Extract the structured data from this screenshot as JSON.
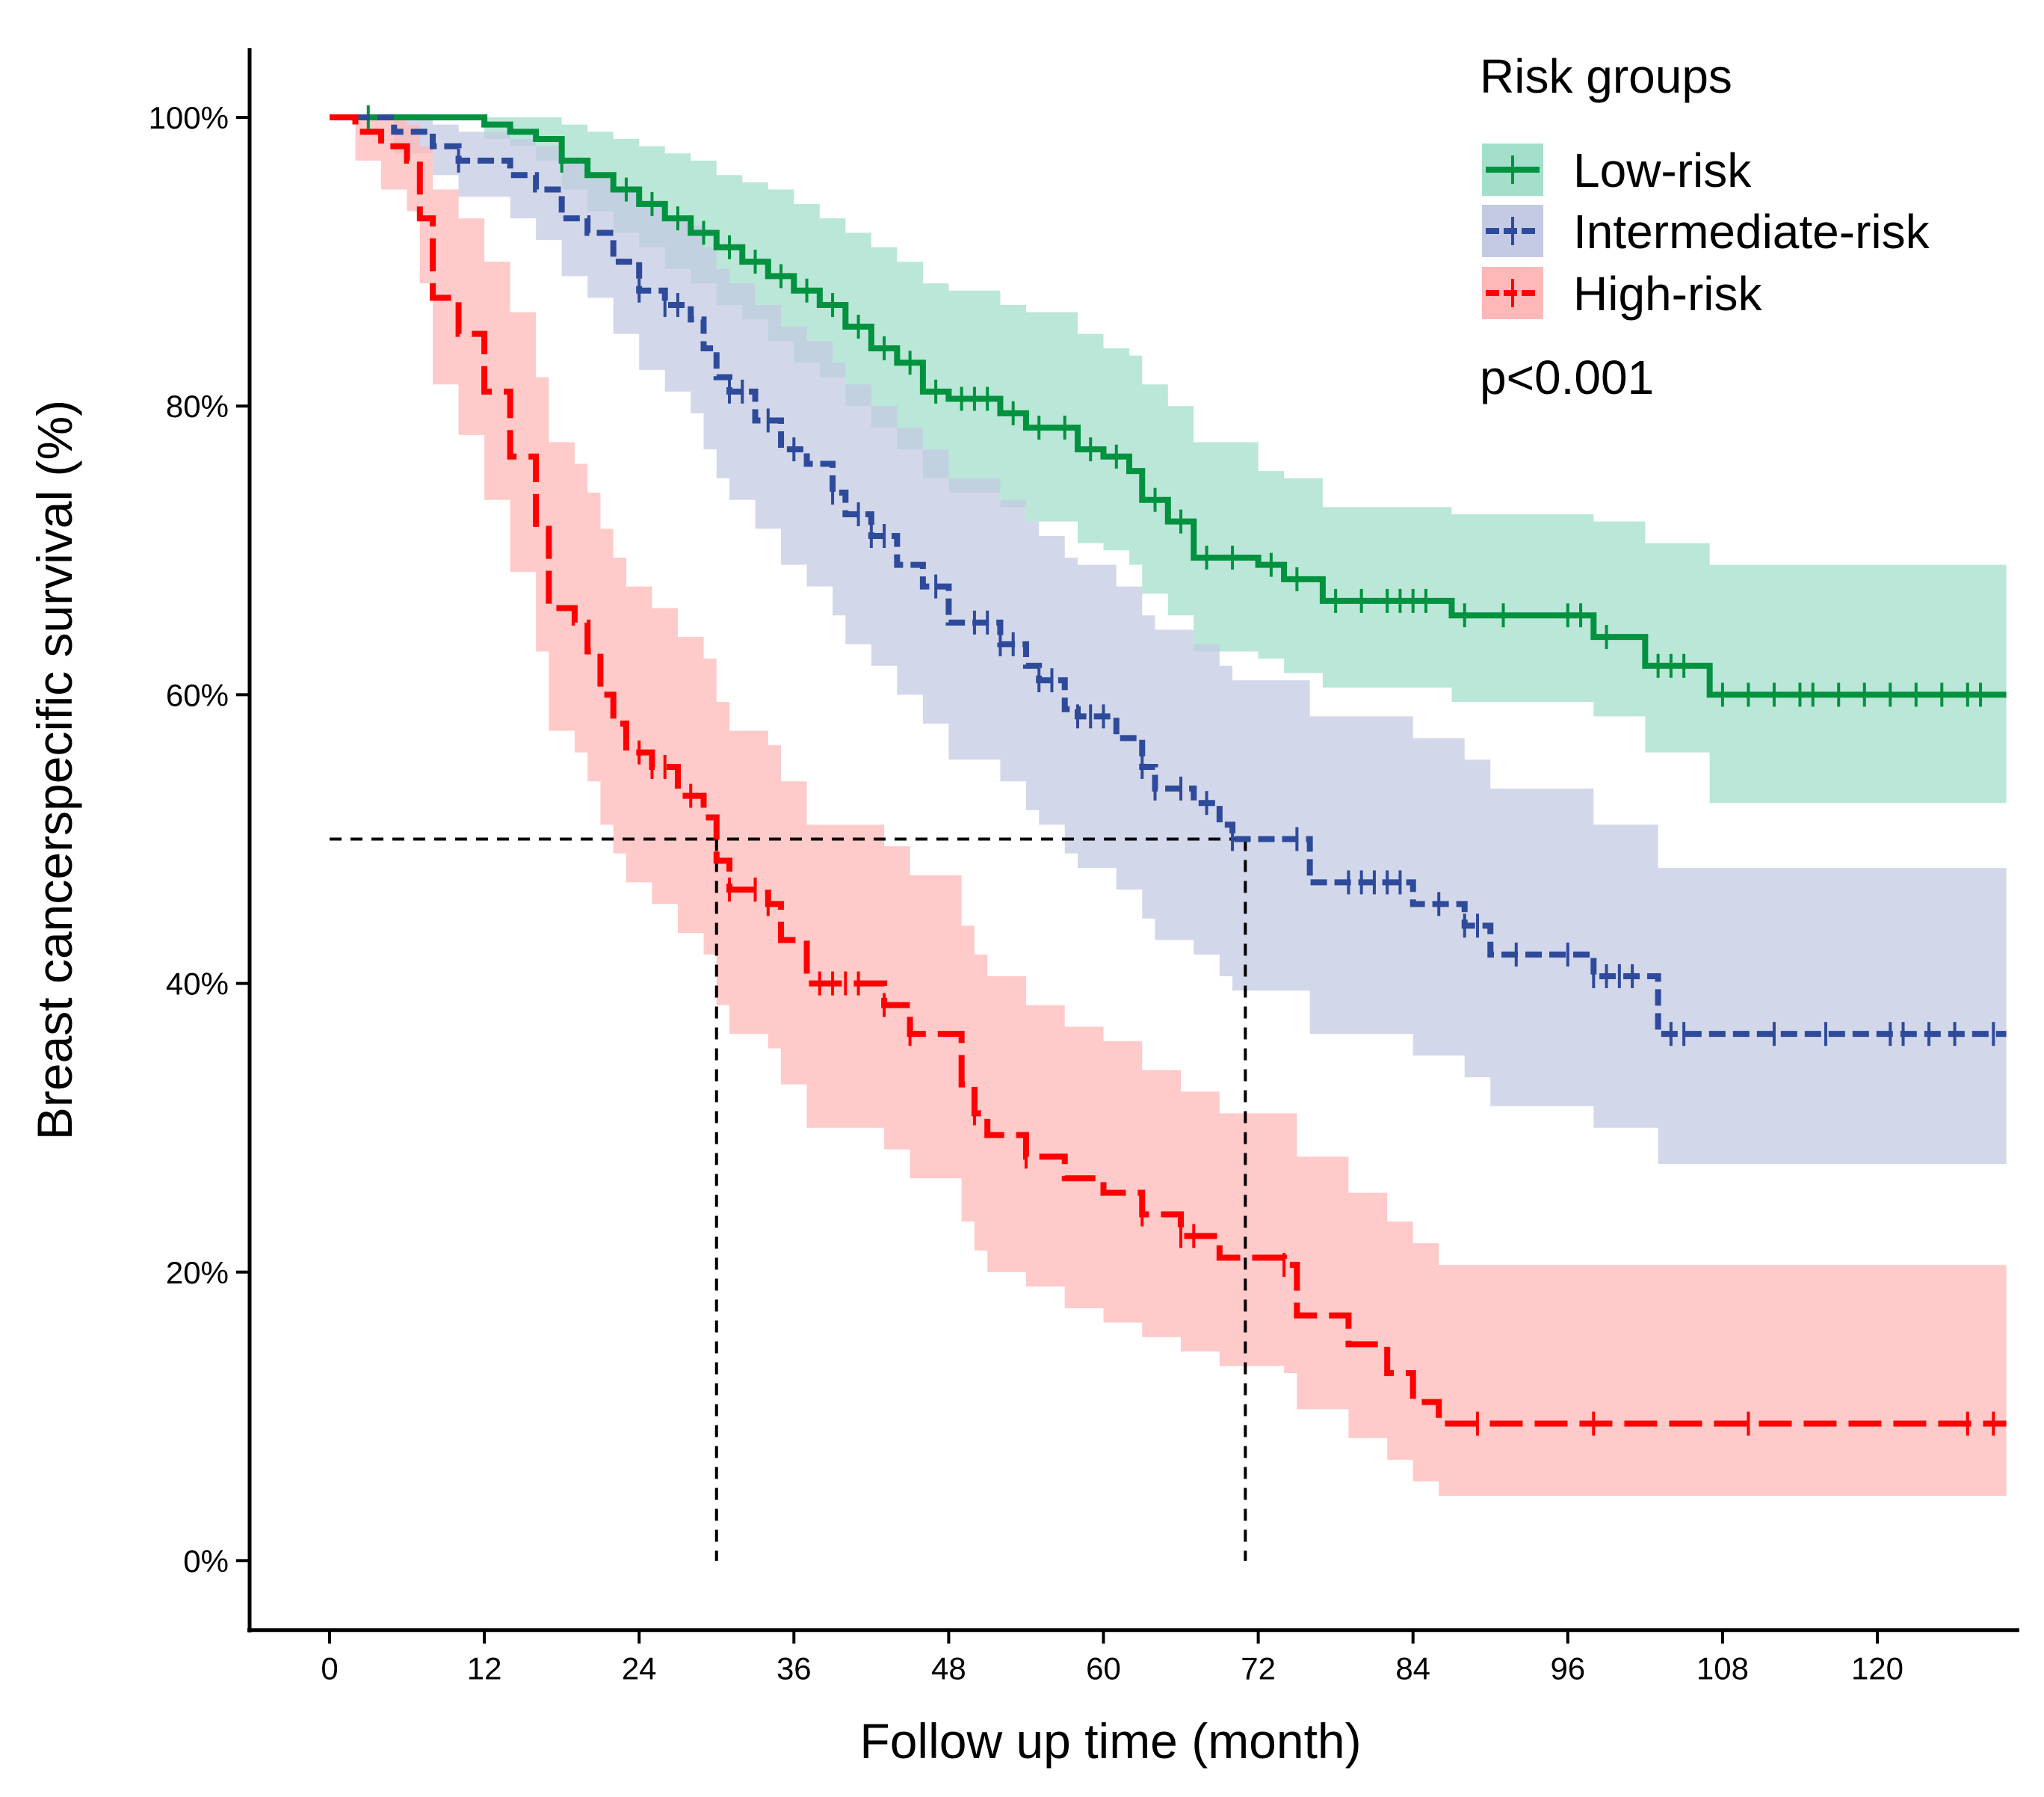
{
  "chart_data": {
    "type": "line",
    "subtype": "kaplan-meier",
    "xlabel": "Follow up time (month)",
    "ylabel": "Breast cancerspecific survival (%)",
    "xlim": [
      -6.2,
      131
    ],
    "ylim": [
      -4.8,
      104.8
    ],
    "xticks": [
      0,
      12,
      24,
      36,
      48,
      60,
      72,
      84,
      96,
      108,
      120
    ],
    "yticks": [
      0,
      20,
      40,
      60,
      80,
      100
    ],
    "ytick_labels": [
      "0%",
      "20%",
      "40%",
      "60%",
      "80%",
      "100%"
    ],
    "grid": false,
    "legend": {
      "title": "Risk groups",
      "placement": "top-right",
      "annotation": "p<0.001"
    },
    "x_end": 130,
    "median_lines": {
      "y": 50,
      "x": [
        30,
        71
      ]
    },
    "series": [
      {
        "name": "Low-risk",
        "line_color": "#00923F",
        "fill_color": "#A3DFCA",
        "dash": "solid",
        "time": [
          0,
          12,
          14,
          16,
          18,
          20,
          22,
          24,
          26,
          28,
          30,
          32,
          34,
          36,
          38,
          40,
          42,
          44,
          46,
          48,
          52,
          54,
          58,
          60,
          62,
          63,
          65,
          67,
          72,
          74,
          77,
          87,
          98,
          102,
          107
        ],
        "survival": [
          100,
          99.5,
          99,
          98.5,
          97,
          96,
          95,
          94,
          93,
          92,
          91,
          90,
          89,
          88,
          87,
          85.5,
          84,
          83,
          81,
          80.5,
          79.5,
          78.5,
          77,
          76.5,
          75.5,
          73.5,
          72,
          69.5,
          69,
          68,
          66.5,
          65.5,
          64,
          62,
          60
        ],
        "upper": [
          100,
          100,
          100,
          100,
          99.5,
          99,
          98.5,
          98,
          97.5,
          97,
          96,
          95.5,
          95,
          94,
          93,
          92,
          91,
          90,
          88.5,
          88,
          87,
          86.5,
          85,
          84,
          83.5,
          81.5,
          80,
          77.5,
          75.5,
          75,
          73,
          72.5,
          72,
          70.5,
          69
        ],
        "lower": [
          100,
          98.5,
          98,
          97,
          95,
          93.5,
          92,
          91,
          89.5,
          88.5,
          87,
          86,
          84.5,
          83,
          82,
          80,
          78.5,
          77,
          75,
          74,
          73,
          72,
          70.5,
          70,
          69,
          67,
          65.5,
          63,
          62.5,
          61.5,
          60.5,
          59.5,
          58.5,
          56,
          52.5
        ],
        "censored": [
          3,
          18,
          23,
          25,
          27,
          29,
          31,
          33,
          35,
          37,
          39,
          41,
          43,
          45,
          47,
          49,
          50,
          51,
          53,
          55,
          57,
          59,
          61,
          64,
          66,
          68,
          70,
          73,
          75,
          78,
          80,
          82,
          83,
          84,
          85,
          88,
          91,
          96,
          97,
          99,
          103,
          104,
          105,
          108,
          110,
          112,
          114,
          115,
          117,
          119,
          121,
          123,
          125,
          127,
          128
        ]
      },
      {
        "name": "Intermediate-risk",
        "line_color": "#2E4A9A",
        "fill_color": "#C4CAE3",
        "dash": "short",
        "time": [
          0,
          5,
          8,
          10,
          14,
          16,
          18,
          20,
          22,
          24,
          26,
          28,
          29,
          30,
          31,
          33,
          35,
          37,
          39,
          40,
          42,
          44,
          46,
          48,
          52,
          54,
          55,
          57,
          58,
          61,
          63,
          64,
          67,
          69,
          70,
          76,
          84,
          88,
          90,
          98,
          103
        ],
        "survival": [
          100,
          99,
          98,
          97,
          96,
          95,
          93,
          92,
          90,
          88,
          87,
          86,
          84,
          82,
          81,
          79,
          77,
          76,
          74,
          72.5,
          71,
          69,
          67.5,
          65,
          63.5,
          62,
          61,
          59,
          58.5,
          57,
          55,
          53.5,
          52.5,
          51,
          50,
          47,
          45.5,
          44,
          42,
          40.5,
          36.5
        ],
        "upper": [
          100,
          100,
          99.5,
          99,
          98.5,
          98,
          97,
          96,
          95,
          94,
          93,
          92.5,
          91,
          89.5,
          88.5,
          87,
          85.5,
          84.5,
          83,
          81.5,
          80,
          78.5,
          77,
          75,
          73.5,
          72,
          71,
          69.5,
          69,
          67.5,
          65.5,
          64.5,
          63.5,
          62,
          61,
          58.5,
          57,
          55.5,
          53.5,
          51,
          48
        ],
        "lower": [
          100,
          97.5,
          96,
          94.5,
          93,
          91.5,
          89,
          87.5,
          85,
          82.5,
          81,
          79.5,
          77,
          75,
          73.5,
          71.5,
          69,
          67.5,
          65.5,
          63.5,
          62,
          60,
          58,
          55.5,
          54,
          52,
          51,
          49,
          48,
          46.5,
          44.5,
          43,
          42,
          40.5,
          39.5,
          36.5,
          35,
          33.5,
          31.5,
          30,
          27.5
        ],
        "censored": [
          10,
          24,
          26,
          27,
          31,
          32,
          34,
          36,
          39,
          41,
          42,
          43,
          47,
          50,
          51,
          52,
          53,
          55,
          56,
          58,
          59,
          60,
          63,
          64,
          66,
          68,
          70,
          75,
          79,
          80,
          81,
          82,
          83,
          86,
          88,
          89,
          92,
          96,
          98,
          99,
          100,
          101,
          104,
          105,
          112,
          116,
          121,
          122,
          124,
          126,
          129
        ]
      },
      {
        "name": "High-risk",
        "line_color": "#FF0000",
        "fill_color": "#FFB8B8",
        "dash": "long",
        "time": [
          0,
          2,
          4,
          6,
          7,
          8,
          10,
          12,
          14,
          16,
          17,
          19,
          20,
          21,
          22,
          23,
          25,
          27,
          29,
          30,
          31,
          34,
          35,
          37,
          43,
          45,
          49,
          50,
          51,
          54,
          57,
          60,
          63,
          66,
          69,
          74,
          75,
          79,
          82,
          84,
          86
        ],
        "survival": [
          100,
          99,
          98,
          97,
          93,
          87.5,
          85,
          81,
          76.5,
          71.5,
          66,
          65,
          63,
          60,
          58,
          56,
          55,
          53,
          51.5,
          48.5,
          46.5,
          45.5,
          43,
          40,
          38.5,
          36.5,
          33,
          31,
          29.5,
          28,
          26.5,
          25.5,
          24,
          22.5,
          21,
          20.5,
          17,
          15,
          13,
          11,
          9.5
        ],
        "upper": [
          100,
          100,
          100,
          99.5,
          98,
          95,
          93,
          90,
          86.5,
          82,
          77.5,
          76,
          74,
          71.5,
          69.5,
          67.5,
          66,
          64,
          62.5,
          59.5,
          57.5,
          56.5,
          54,
          51,
          49.5,
          47.5,
          44,
          42,
          40.5,
          38.5,
          37,
          36,
          34,
          32.5,
          31,
          31,
          28,
          25.5,
          23.5,
          22,
          20.5
        ],
        "lower": [
          100,
          97,
          95,
          93.5,
          88.5,
          81.5,
          78,
          73.5,
          68.5,
          63,
          57.5,
          56,
          54,
          51,
          49,
          47,
          45.5,
          43.5,
          42,
          38.5,
          36.5,
          35.5,
          33,
          30,
          28.5,
          26.5,
          23.5,
          21.5,
          20,
          19,
          17.5,
          16.5,
          15.5,
          14.5,
          13.5,
          13,
          10.5,
          8.5,
          7,
          5.5,
          4.5
        ],
        "censored": [
          24,
          25,
          26,
          28,
          31,
          33,
          34,
          38,
          39,
          40,
          41,
          43,
          45,
          50,
          54,
          63,
          66,
          67,
          74,
          89,
          98,
          110,
          127,
          129
        ]
      }
    ]
  }
}
